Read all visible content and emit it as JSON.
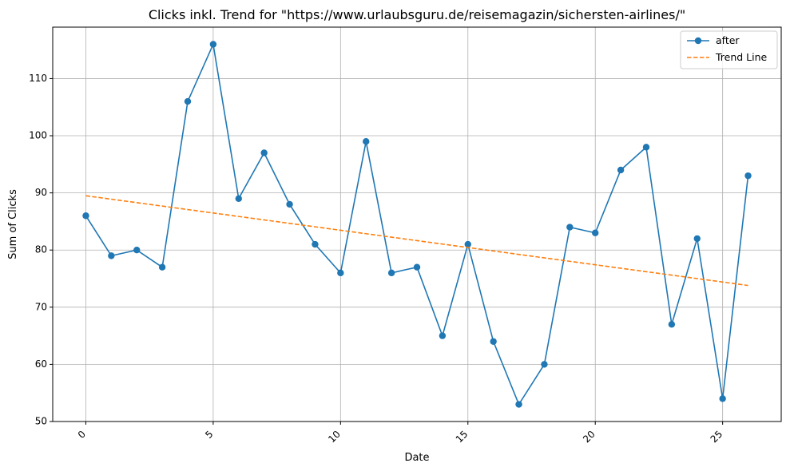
{
  "chart_data": {
    "type": "line",
    "title": "Clicks inkl. Trend for \"https://www.urlaubsguru.de/reisemagazin/sichersten-airlines/\"",
    "xlabel": "Date",
    "ylabel": "Sum of Clicks",
    "xlim": [
      -1.3,
      27.3
    ],
    "ylim": [
      50,
      119
    ],
    "xticks": [
      0,
      5,
      10,
      15,
      20,
      25
    ],
    "yticks": [
      50,
      60,
      70,
      80,
      90,
      100,
      110
    ],
    "grid": true,
    "legend_position": "top-right",
    "series": [
      {
        "name": "after",
        "style": "solid-with-markers",
        "color": "#1f77b4",
        "x": [
          0,
          1,
          2,
          3,
          4,
          5,
          6,
          7,
          8,
          9,
          10,
          11,
          12,
          13,
          14,
          15,
          16,
          17,
          18,
          19,
          20,
          21,
          22,
          23,
          24,
          25,
          26
        ],
        "values": [
          86,
          79,
          80,
          77,
          106,
          116,
          89,
          97,
          88,
          81,
          76,
          99,
          76,
          77,
          65,
          81,
          64,
          53,
          60,
          84,
          83,
          94,
          98,
          67,
          82,
          54,
          93
        ]
      },
      {
        "name": "Trend Line",
        "style": "dashed",
        "color": "#ff7f0e",
        "x": [
          0,
          26
        ],
        "values": [
          89.5,
          73.8
        ]
      }
    ]
  }
}
